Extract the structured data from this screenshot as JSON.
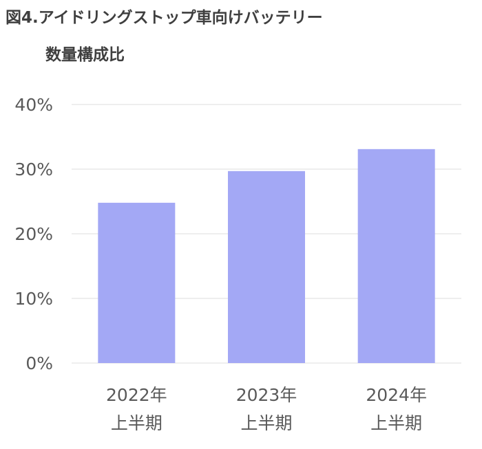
{
  "header": {
    "title_line1": "図4.アイドリングストップ車向けバッテリー",
    "title_line2": "数量構成比"
  },
  "colors": {
    "bar": "#a3a8f5",
    "grid": "#e8e8e8",
    "text": "#595959",
    "title": "#3f3f3f"
  },
  "chart_data": {
    "type": "bar",
    "title": "図4.アイドリングストップ車向けバッテリー 数量構成比",
    "categories": [
      [
        "2022年",
        "上半期"
      ],
      [
        "2023年",
        "上半期"
      ],
      [
        "2024年",
        "上半期"
      ]
    ],
    "values": [
      24.8,
      29.7,
      33.1
    ],
    "unit": "%",
    "ylim": [
      0,
      40
    ],
    "yticks": [
      0,
      10,
      20,
      30,
      40
    ],
    "ytick_labels": [
      "0%",
      "10%",
      "20%",
      "30%",
      "40%"
    ],
    "grid": true,
    "legend": "none",
    "xlabel": "",
    "ylabel": ""
  }
}
